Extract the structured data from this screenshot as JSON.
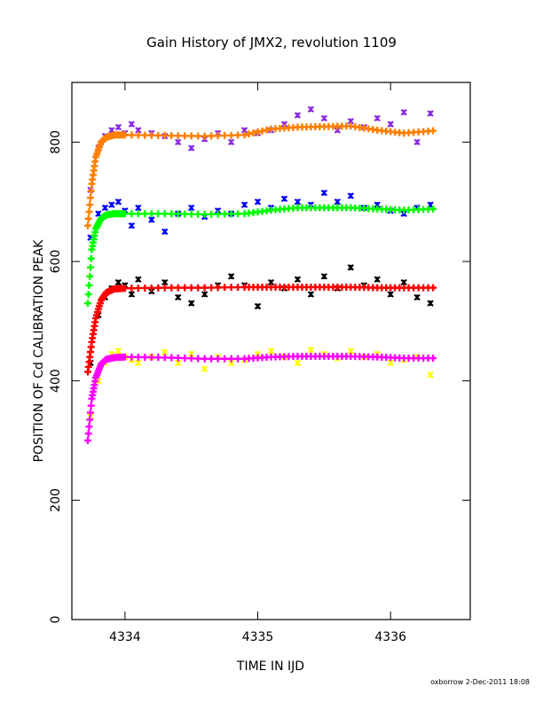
{
  "chart_data": {
    "type": "scatter",
    "title": "Gain History of JMX2, revolution 1109",
    "xlabel": "TIME IN IJD",
    "ylabel": "POSITION OF Cd CALIBRATION PEAK",
    "xlim": [
      4333.6,
      4336.6
    ],
    "ylim": [
      0,
      900
    ],
    "x_ticks": [
      {
        "value": 4334,
        "label": "4334"
      },
      {
        "value": 4335,
        "label": "4335"
      },
      {
        "value": 4336,
        "label": "4336"
      }
    ],
    "y_ticks": [
      {
        "value": 0,
        "label": "0"
      },
      {
        "value": 200,
        "label": "200"
      },
      {
        "value": 400,
        "label": "400"
      },
      {
        "value": 600,
        "label": "600"
      },
      {
        "value": 800,
        "label": "800"
      }
    ],
    "grid": false,
    "legend": "none",
    "footer": "oxborrow  2-Dec-2011 18:08",
    "series": [
      {
        "color": "#8a2be2",
        "kind": "raw",
        "x": [
          4333.74,
          4333.8,
          4333.85,
          4333.9,
          4333.95,
          4334.0,
          4334.05,
          4334.1,
          4334.2,
          4334.3,
          4334.4,
          4334.5,
          4334.6,
          4334.7,
          4334.8,
          4334.9,
          4335.0,
          4335.1,
          4335.2,
          4335.3,
          4335.4,
          4335.5,
          4335.6,
          4335.7,
          4335.8,
          4335.9,
          4336.0,
          4336.1,
          4336.2,
          4336.3
        ],
        "y": [
          720,
          790,
          810,
          820,
          825,
          815,
          830,
          820,
          815,
          810,
          800,
          790,
          805,
          815,
          800,
          820,
          815,
          820,
          830,
          845,
          855,
          840,
          820,
          835,
          825,
          840,
          830,
          850,
          800,
          848
        ]
      },
      {
        "color": "#ff7f00",
        "kind": "fit",
        "x": [
          4333.72,
          4333.75,
          4333.78,
          4333.82,
          4333.86,
          4333.92,
          4334.0,
          4334.3,
          4334.6,
          4334.9,
          4335.1,
          4335.3,
          4335.5,
          4335.7,
          4335.9,
          4336.1,
          4336.32
        ],
        "y": [
          660,
          730,
          775,
          800,
          808,
          812,
          812,
          811,
          810,
          812,
          822,
          825,
          826,
          827,
          820,
          815,
          819
        ]
      },
      {
        "color": "#0000ff",
        "kind": "raw",
        "x": [
          4333.74,
          4333.8,
          4333.85,
          4333.9,
          4333.95,
          4334.0,
          4334.05,
          4334.1,
          4334.2,
          4334.3,
          4334.4,
          4334.5,
          4334.6,
          4334.7,
          4334.8,
          4334.9,
          4335.0,
          4335.1,
          4335.2,
          4335.3,
          4335.4,
          4335.5,
          4335.6,
          4335.7,
          4335.8,
          4335.9,
          4336.0,
          4336.1,
          4336.2,
          4336.3
        ],
        "y": [
          640,
          680,
          690,
          695,
          700,
          685,
          660,
          690,
          670,
          650,
          680,
          690,
          675,
          685,
          680,
          695,
          700,
          690,
          705,
          700,
          695,
          715,
          700,
          710,
          690,
          695,
          685,
          680,
          690,
          695
        ]
      },
      {
        "color": "#00ff00",
        "kind": "fit",
        "x": [
          4333.72,
          4333.75,
          4333.78,
          4333.82,
          4333.86,
          4333.92,
          4334.0,
          4334.3,
          4334.6,
          4334.9,
          4335.1,
          4335.3,
          4335.5,
          4335.7,
          4335.9,
          4336.1,
          4336.32
        ],
        "y": [
          530,
          620,
          655,
          672,
          678,
          680,
          680,
          680,
          679,
          680,
          686,
          690,
          690,
          690,
          688,
          686,
          688
        ]
      },
      {
        "color": "#000000",
        "kind": "raw",
        "x": [
          4333.74,
          4333.8,
          4333.85,
          4333.9,
          4333.95,
          4334.0,
          4334.05,
          4334.1,
          4334.2,
          4334.3,
          4334.4,
          4334.5,
          4334.6,
          4334.7,
          4334.8,
          4334.9,
          4335.0,
          4335.1,
          4335.2,
          4335.3,
          4335.4,
          4335.5,
          4335.6,
          4335.7,
          4335.8,
          4335.9,
          4336.0,
          4336.1,
          4336.2,
          4336.3
        ],
        "y": [
          430,
          510,
          540,
          555,
          565,
          560,
          545,
          570,
          550,
          565,
          540,
          530,
          545,
          560,
          575,
          560,
          525,
          565,
          555,
          570,
          545,
          575,
          555,
          590,
          560,
          570,
          545,
          565,
          540,
          530
        ]
      },
      {
        "color": "#ff0000",
        "kind": "fit",
        "x": [
          4333.72,
          4333.75,
          4333.78,
          4333.82,
          4333.86,
          4333.92,
          4334.0,
          4334.3,
          4334.6,
          4334.9,
          4335.1,
          4335.3,
          4335.5,
          4335.7,
          4335.9,
          4336.1,
          4336.32
        ],
        "y": [
          415,
          465,
          505,
          535,
          548,
          554,
          555,
          556,
          556,
          557,
          557,
          557,
          557,
          557,
          556,
          556,
          556
        ]
      },
      {
        "color": "#ffff00",
        "kind": "raw",
        "x": [
          4333.74,
          4333.8,
          4333.85,
          4333.9,
          4333.95,
          4334.0,
          4334.05,
          4334.1,
          4334.2,
          4334.3,
          4334.4,
          4334.5,
          4334.6,
          4334.7,
          4334.8,
          4334.9,
          4335.0,
          4335.1,
          4335.2,
          4335.3,
          4335.4,
          4335.5,
          4335.6,
          4335.7,
          4335.8,
          4335.9,
          4336.0,
          4336.1,
          4336.2,
          4336.3
        ],
        "y": [
          340,
          400,
          430,
          445,
          450,
          440,
          435,
          430,
          440,
          448,
          430,
          445,
          420,
          440,
          430,
          435,
          445,
          450,
          440,
          430,
          452,
          445,
          438,
          450,
          440,
          445,
          430,
          435,
          440,
          410
        ]
      },
      {
        "color": "#ff00ff",
        "kind": "fit",
        "x": [
          4333.72,
          4333.75,
          4333.78,
          4333.82,
          4333.86,
          4333.92,
          4334.0,
          4334.3,
          4334.6,
          4334.9,
          4335.1,
          4335.3,
          4335.5,
          4335.7,
          4335.9,
          4336.1,
          4336.32
        ],
        "y": [
          300,
          370,
          405,
          428,
          436,
          439,
          440,
          439,
          437,
          437,
          440,
          441,
          441,
          441,
          440,
          438,
          438
        ]
      }
    ]
  }
}
